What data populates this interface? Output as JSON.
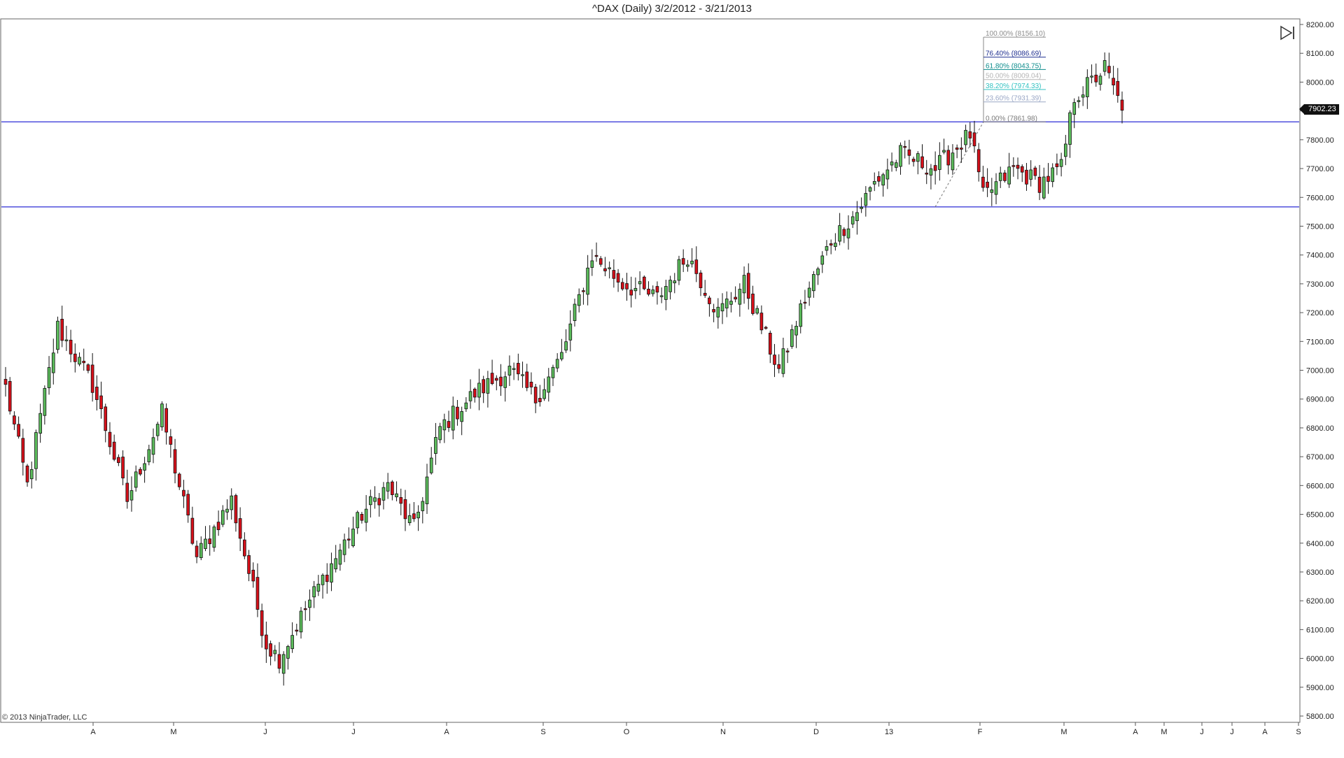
{
  "title": "^DAX (Daily)  3/2/2012 - 3/21/2013",
  "copyright": "© 2013 NinjaTrader, LLC",
  "last_price_label": "7902.23",
  "icons": {
    "collapse": "play-skip-icon"
  },
  "colors": {
    "up": "#5cbd5c",
    "down": "#d7101a",
    "hline": "#2b2bd6",
    "fib_top": "#8c8c8c",
    "fib_76": "#1f2f8f",
    "fib_618": "#0c8c8c",
    "fib_50": "#b5b5b5",
    "fib_382": "#33c2c2",
    "fib_236": "#9aa7c6",
    "fib_0": "#7a7a7a"
  },
  "chart_data": {
    "type": "candlestick",
    "title": "^DAX (Daily)  3/2/2012 - 3/21/2013",
    "y_axis": {
      "min": 5800,
      "max": 8200,
      "side": "right",
      "ticks": [
        "8200.00",
        "8100.00",
        "8000.00",
        "7900.00",
        "7800.00",
        "7700.00",
        "7600.00",
        "7500.00",
        "7400.00",
        "7300.00",
        "7200.00",
        "7100.00",
        "7000.00",
        "6900.00",
        "6800.00",
        "6700.00",
        "6600.00",
        "6500.00",
        "6400.00",
        "6300.00",
        "6200.00",
        "6100.00",
        "6000.00",
        "5900.00",
        "5800.00"
      ]
    },
    "x_axis": {
      "labels": [
        "A",
        "M",
        "J",
        "J",
        "A",
        "S",
        "O",
        "N",
        "D",
        "13",
        "F",
        "M",
        "A",
        "M",
        "J",
        "J",
        "A",
        "S"
      ]
    },
    "horizontal_lines": [
      7862,
      7567
    ],
    "fibonacci": [
      {
        "label": "100.00% (8156.10)",
        "value": 8156.1
      },
      {
        "label": "76.40% (8086.69)",
        "value": 8086.69
      },
      {
        "label": "61.80% (8043.75)",
        "value": 8043.75
      },
      {
        "label": "50.00% (8009.04)",
        "value": 8009.04
      },
      {
        "label": "38.20% (7974.33)",
        "value": 7974.33
      },
      {
        "label": "23.60% (7931.39)",
        "value": 7931.39
      },
      {
        "label": "0.00% (7861.98)",
        "value": 7861.98
      }
    ],
    "anchors": [
      {
        "index": 0,
        "value": 6940
      },
      {
        "index": 5,
        "value": 6600
      },
      {
        "index": 12,
        "value": 7150
      },
      {
        "index": 20,
        "value": 6950
      },
      {
        "index": 28,
        "value": 6550
      },
      {
        "index": 36,
        "value": 6850
      },
      {
        "index": 44,
        "value": 6350
      },
      {
        "index": 52,
        "value": 6550
      },
      {
        "index": 60,
        "value": 6050
      },
      {
        "index": 63,
        "value": 6000
      },
      {
        "index": 70,
        "value": 6200
      },
      {
        "index": 76,
        "value": 6350
      },
      {
        "index": 82,
        "value": 6500
      },
      {
        "index": 88,
        "value": 6600
      },
      {
        "index": 94,
        "value": 6450
      },
      {
        "index": 100,
        "value": 6800
      },
      {
        "index": 108,
        "value": 6920
      },
      {
        "index": 116,
        "value": 7000
      },
      {
        "index": 122,
        "value": 6900
      },
      {
        "index": 128,
        "value": 7050
      },
      {
        "index": 131,
        "value": 7200
      },
      {
        "index": 135,
        "value": 7400
      },
      {
        "index": 142,
        "value": 7300
      },
      {
        "index": 150,
        "value": 7250
      },
      {
        "index": 157,
        "value": 7400
      },
      {
        "index": 164,
        "value": 7200
      },
      {
        "index": 170,
        "value": 7300
      },
      {
        "index": 174,
        "value": 7150
      },
      {
        "index": 178,
        "value": 7000
      },
      {
        "index": 184,
        "value": 7250
      },
      {
        "index": 190,
        "value": 7450
      },
      {
        "index": 196,
        "value": 7550
      },
      {
        "index": 200,
        "value": 7650
      },
      {
        "index": 206,
        "value": 7750
      },
      {
        "index": 214,
        "value": 7700
      },
      {
        "index": 222,
        "value": 7820
      },
      {
        "index": 225,
        "value": 7600
      },
      {
        "index": 232,
        "value": 7700
      },
      {
        "index": 238,
        "value": 7650
      },
      {
        "index": 243,
        "value": 7700
      },
      {
        "index": 246,
        "value": 7950
      },
      {
        "index": 250,
        "value": 8000
      },
      {
        "index": 253,
        "value": 8050
      },
      {
        "index": 257,
        "value": 7902
      }
    ],
    "last_value": 7902.23
  }
}
